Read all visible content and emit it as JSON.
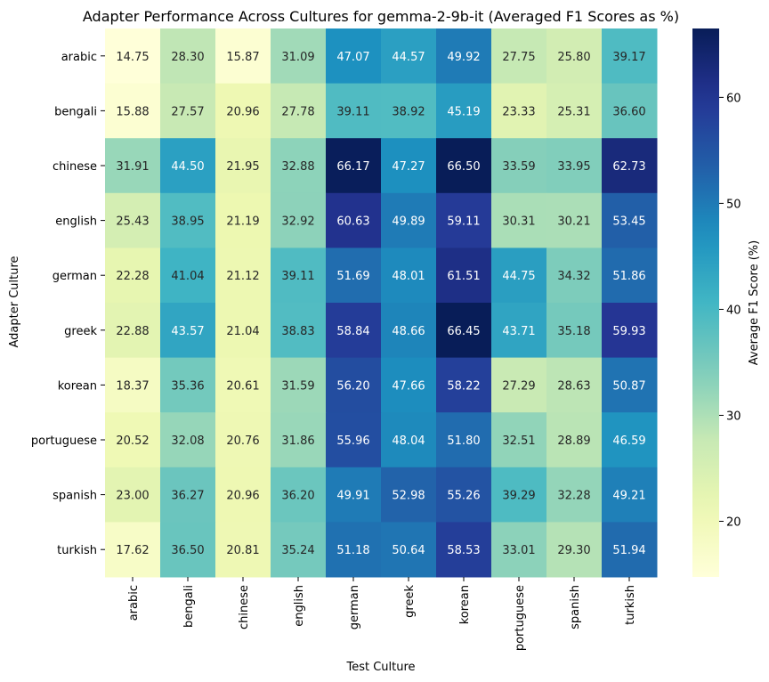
{
  "chart_data": {
    "type": "heatmap",
    "title": "Adapter Performance Across Cultures for gemma-2-9b-it (Averaged F1 Scores as %)",
    "xlabel": "Test Culture",
    "ylabel": "Adapter Culture",
    "colorbar_label": "Average F1 Score (%)",
    "colorbar_ticks": [
      20,
      30,
      40,
      50,
      60
    ],
    "colorbar_range": [
      14.75,
      66.5
    ],
    "colormap": "YlGnBu",
    "x_categories": [
      "arabic",
      "bengali",
      "chinese",
      "english",
      "german",
      "greek",
      "korean",
      "portuguese",
      "spanish",
      "turkish"
    ],
    "y_categories": [
      "arabic",
      "bengali",
      "chinese",
      "english",
      "german",
      "greek",
      "korean",
      "portuguese",
      "spanish",
      "turkish"
    ],
    "values": [
      [
        14.75,
        28.3,
        15.87,
        31.09,
        47.07,
        44.57,
        49.92,
        27.75,
        25.8,
        39.17
      ],
      [
        15.88,
        27.57,
        20.96,
        27.78,
        39.11,
        38.92,
        45.19,
        23.33,
        25.31,
        36.6
      ],
      [
        31.91,
        44.5,
        21.95,
        32.88,
        66.17,
        47.27,
        66.5,
        33.59,
        33.95,
        62.73
      ],
      [
        25.43,
        38.95,
        21.19,
        32.92,
        60.63,
        49.89,
        59.11,
        30.31,
        30.21,
        53.45
      ],
      [
        22.28,
        41.04,
        21.12,
        39.11,
        51.69,
        48.01,
        61.51,
        44.75,
        34.32,
        51.86
      ],
      [
        22.88,
        43.57,
        21.04,
        38.83,
        58.84,
        48.66,
        66.45,
        43.71,
        35.18,
        59.93
      ],
      [
        18.37,
        35.36,
        20.61,
        31.59,
        56.2,
        47.66,
        58.22,
        27.29,
        28.63,
        50.87
      ],
      [
        20.52,
        32.08,
        20.76,
        31.86,
        55.96,
        48.04,
        51.8,
        32.51,
        28.89,
        46.59
      ],
      [
        23.0,
        36.27,
        20.96,
        36.2,
        49.91,
        52.98,
        55.26,
        39.29,
        32.28,
        49.21
      ],
      [
        17.62,
        36.5,
        20.81,
        35.24,
        51.18,
        50.64,
        58.53,
        33.01,
        29.3,
        51.94
      ]
    ]
  }
}
